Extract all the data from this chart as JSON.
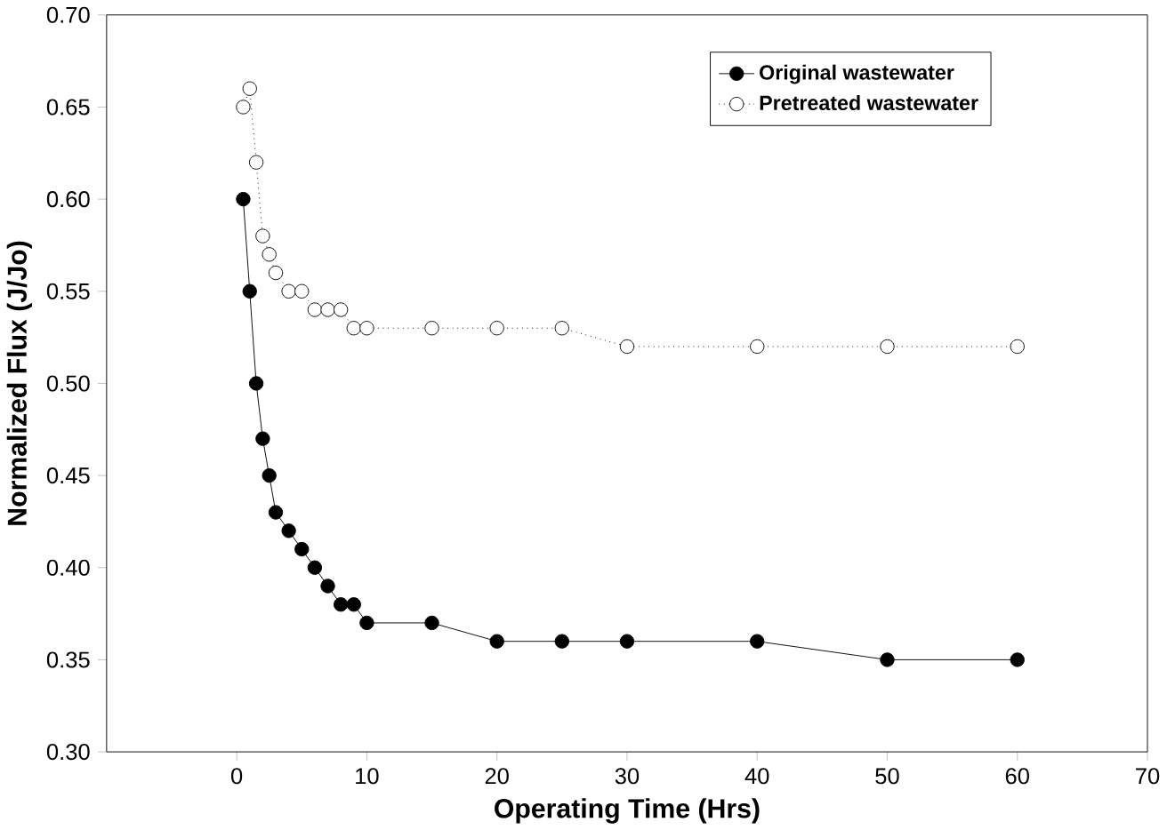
{
  "chart_data": {
    "type": "line",
    "xlabel": "Operating Time (Hrs)",
    "ylabel": "Normalized Flux (J/Jo)",
    "xlim": [
      -10,
      70
    ],
    "xticks": [
      0,
      10,
      20,
      30,
      40,
      50,
      60,
      70
    ],
    "ylim": [
      0.3,
      0.7
    ],
    "yticks": [
      {
        "value": 0.3,
        "label": "0.30"
      },
      0.35,
      {
        "value": 0.4,
        "label": "0.40"
      },
      0.45,
      {
        "value": 0.5,
        "label": "0.50"
      },
      0.55,
      {
        "value": 0.6,
        "label": "0.60"
      },
      0.65,
      {
        "value": 0.7,
        "label": "0.70"
      }
    ],
    "legend": "top right",
    "grid": false,
    "series": [
      {
        "name": "Original wastewater",
        "color": "#000000",
        "marker": "circle",
        "line_style": "solid",
        "x": [
          0.5,
          1,
          1.5,
          2,
          2.5,
          3,
          4,
          5,
          6,
          7,
          8,
          9,
          10,
          15,
          20,
          25,
          30,
          40,
          50,
          60
        ],
        "values": [
          0.6,
          0.55,
          0.5,
          0.47,
          0.45,
          0.43,
          0.42,
          0.41,
          0.4,
          0.39,
          0.38,
          0.38,
          0.37,
          0.37,
          0.36,
          0.36,
          0.36,
          0.36,
          0.35,
          0.35
        ]
      },
      {
        "name": "Pretreated wastewater",
        "color": "#000000",
        "marker": "circle",
        "line_style": "dotted",
        "x": [
          0.5,
          1,
          1.5,
          2,
          2.5,
          3,
          4,
          5,
          6,
          7,
          8,
          9,
          10,
          15,
          20,
          25,
          30,
          40,
          50,
          60
        ],
        "values": [
          0.65,
          0.66,
          0.62,
          0.58,
          0.57,
          0.56,
          0.55,
          0.55,
          0.54,
          0.54,
          0.54,
          0.53,
          0.53,
          0.53,
          0.53,
          0.53,
          0.52,
          0.52,
          0.52,
          0.52
        ]
      }
    ]
  }
}
